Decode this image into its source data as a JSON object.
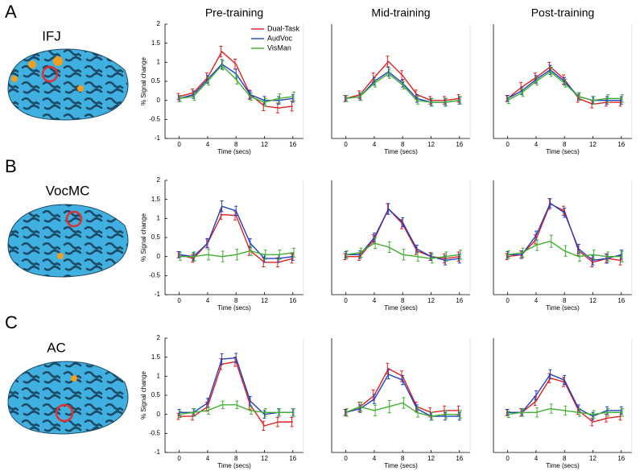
{
  "figure": {
    "row_labels": [
      "A",
      "B",
      "C"
    ],
    "regions": [
      "IFJ",
      "VocMC",
      "AC"
    ]
  },
  "chart_data": [
    {
      "type": "line",
      "title": "Pre-training",
      "xlabel": "Time (secs)",
      "ylabel": "% Signal change",
      "x": [
        0,
        2,
        4,
        6,
        8,
        10,
        12,
        14,
        16
      ],
      "xlim": [
        -2,
        17.5
      ],
      "xticks": [
        0,
        4,
        8,
        12,
        16
      ],
      "ylim": [
        -1,
        2
      ],
      "yticks": [
        -1,
        -0.5,
        0,
        0.5,
        1,
        1.5,
        2
      ],
      "legend": "upper right",
      "series": [
        {
          "name": "Dual-Task",
          "color": "#e02020",
          "values": [
            0.1,
            0.2,
            0.6,
            1.28,
            0.95,
            0.15,
            -0.15,
            -0.2,
            -0.15
          ],
          "errors": [
            0.08,
            0.1,
            0.12,
            0.14,
            0.13,
            0.12,
            0.12,
            0.13,
            0.13
          ]
        },
        {
          "name": "AudVoc",
          "color": "#2040c0",
          "values": [
            0.05,
            0.15,
            0.55,
            0.95,
            0.7,
            0.15,
            0.0,
            0.0,
            0.05
          ],
          "errors": [
            0.08,
            0.1,
            0.1,
            0.12,
            0.12,
            0.1,
            0.1,
            0.1,
            0.1
          ]
        },
        {
          "name": "VisMan",
          "color": "#40b030",
          "values": [
            0.05,
            0.1,
            0.5,
            0.92,
            0.55,
            0.1,
            -0.05,
            0.05,
            0.1
          ],
          "errors": [
            0.08,
            0.1,
            0.1,
            0.12,
            0.12,
            0.1,
            0.1,
            0.12,
            0.12
          ]
        }
      ]
    },
    {
      "type": "line",
      "title": "Mid-training",
      "xlabel": "Time (secs)",
      "x": [
        0,
        2,
        4,
        6,
        8,
        10,
        12,
        14,
        16
      ],
      "xlim": [
        -2,
        17.5
      ],
      "xticks": [
        0,
        4,
        8,
        12,
        16
      ],
      "ylim": [
        -1,
        2
      ],
      "series": [
        {
          "color": "#e02020",
          "values": [
            0.05,
            0.15,
            0.6,
            1.02,
            0.65,
            0.15,
            0.0,
            0.0,
            0.05
          ],
          "errors": [
            0.08,
            0.1,
            0.12,
            0.14,
            0.13,
            0.12,
            0.1,
            0.1,
            0.1
          ]
        },
        {
          "color": "#2040c0",
          "values": [
            0.05,
            0.1,
            0.5,
            0.75,
            0.45,
            0.05,
            -0.05,
            -0.05,
            0.0
          ],
          "errors": [
            0.08,
            0.1,
            0.1,
            0.12,
            0.1,
            0.1,
            0.1,
            0.1,
            0.1
          ]
        },
        {
          "color": "#40b030",
          "values": [
            0.05,
            0.1,
            0.45,
            0.7,
            0.4,
            0.0,
            -0.05,
            -0.05,
            0.0
          ],
          "errors": [
            0.08,
            0.1,
            0.1,
            0.12,
            0.1,
            0.1,
            0.1,
            0.1,
            0.1
          ]
        }
      ]
    },
    {
      "type": "line",
      "title": "Post-training",
      "xlabel": "Time (secs)",
      "x": [
        0,
        2,
        4,
        6,
        8,
        10,
        12,
        14,
        16
      ],
      "xlim": [
        -2,
        17.5
      ],
      "xticks": [
        0,
        4,
        8,
        12,
        16
      ],
      "ylim": [
        -1,
        2
      ],
      "series": [
        {
          "color": "#e02020",
          "values": [
            0.05,
            0.35,
            0.6,
            0.88,
            0.55,
            0.05,
            -0.1,
            -0.05,
            -0.05
          ],
          "errors": [
            0.08,
            0.12,
            0.12,
            0.12,
            0.12,
            0.1,
            0.1,
            0.1,
            0.1
          ]
        },
        {
          "color": "#2040c0",
          "values": [
            0.05,
            0.25,
            0.55,
            0.8,
            0.5,
            0.1,
            0.0,
            0.0,
            0.0
          ],
          "errors": [
            0.08,
            0.1,
            0.1,
            0.12,
            0.1,
            0.1,
            0.1,
            0.1,
            0.1
          ]
        },
        {
          "color": "#40b030",
          "values": [
            0.0,
            0.2,
            0.5,
            0.75,
            0.45,
            0.1,
            0.0,
            0.05,
            0.05
          ],
          "errors": [
            0.08,
            0.1,
            0.1,
            0.12,
            0.1,
            0.1,
            0.1,
            0.1,
            0.1
          ]
        }
      ]
    },
    {
      "type": "line",
      "xlabel": "Time (secs)",
      "ylabel": "% Signal change",
      "x": [
        0,
        2,
        4,
        6,
        8,
        10,
        12,
        14,
        16
      ],
      "xlim": [
        -2,
        17.5
      ],
      "xticks": [
        0,
        4,
        8,
        12,
        16
      ],
      "ylim": [
        -1,
        2
      ],
      "yticks": [
        -1,
        -0.5,
        0,
        0.5,
        1,
        1.5,
        2
      ],
      "series": [
        {
          "color": "#e02020",
          "values": [
            0.05,
            -0.05,
            0.35,
            1.1,
            1.08,
            0.15,
            -0.15,
            -0.15,
            -0.05
          ],
          "errors": [
            0.08,
            0.1,
            0.12,
            0.12,
            0.12,
            0.12,
            0.12,
            0.12,
            0.12
          ]
        },
        {
          "color": "#2040c0",
          "values": [
            0.05,
            0.0,
            0.35,
            1.32,
            1.2,
            0.35,
            -0.05,
            -0.05,
            0.0
          ],
          "errors": [
            0.08,
            0.1,
            0.12,
            0.14,
            0.12,
            0.12,
            0.1,
            0.1,
            0.1
          ]
        },
        {
          "color": "#40b030",
          "values": [
            0.0,
            0.0,
            0.05,
            0.0,
            0.05,
            0.15,
            0.05,
            0.05,
            0.1
          ],
          "errors": [
            0.1,
            0.12,
            0.14,
            0.14,
            0.14,
            0.12,
            0.12,
            0.12,
            0.12
          ]
        }
      ]
    },
    {
      "type": "line",
      "xlabel": "Time (secs)",
      "x": [
        0,
        2,
        4,
        6,
        8,
        10,
        12,
        14,
        16
      ],
      "xlim": [
        -2,
        17.5
      ],
      "xticks": [
        0,
        4,
        8,
        12,
        16
      ],
      "ylim": [
        -1,
        2
      ],
      "series": [
        {
          "color": "#e02020",
          "values": [
            0.0,
            0.0,
            0.45,
            1.25,
            0.85,
            0.15,
            0.0,
            -0.05,
            0.0
          ],
          "errors": [
            0.08,
            0.1,
            0.12,
            0.14,
            0.12,
            0.1,
            0.1,
            0.12,
            0.12
          ]
        },
        {
          "color": "#2040c0",
          "values": [
            0.05,
            0.05,
            0.5,
            1.25,
            0.9,
            0.2,
            0.0,
            -0.1,
            -0.05
          ],
          "errors": [
            0.08,
            0.1,
            0.12,
            0.14,
            0.12,
            0.1,
            0.1,
            0.12,
            0.12
          ]
        },
        {
          "color": "#40b030",
          "values": [
            0.05,
            0.1,
            0.35,
            0.25,
            0.05,
            0.0,
            -0.05,
            0.0,
            0.05
          ],
          "errors": [
            0.1,
            0.12,
            0.14,
            0.14,
            0.14,
            0.12,
            0.12,
            0.12,
            0.12
          ]
        }
      ]
    },
    {
      "type": "line",
      "xlabel": "Time (secs)",
      "x": [
        0,
        2,
        4,
        6,
        8,
        10,
        12,
        14,
        16
      ],
      "xlim": [
        -2,
        17.5
      ],
      "xticks": [
        0,
        4,
        8,
        12,
        16
      ],
      "ylim": [
        -1,
        2
      ],
      "series": [
        {
          "color": "#e02020",
          "values": [
            0.0,
            0.05,
            0.45,
            1.38,
            1.2,
            0.15,
            -0.15,
            -0.05,
            -0.1
          ],
          "errors": [
            0.08,
            0.1,
            0.12,
            0.14,
            0.12,
            0.12,
            0.12,
            0.12,
            0.12
          ]
        },
        {
          "color": "#2040c0",
          "values": [
            0.05,
            0.05,
            0.55,
            1.4,
            1.15,
            0.2,
            -0.1,
            -0.05,
            0.05
          ],
          "errors": [
            0.08,
            0.1,
            0.12,
            0.12,
            0.12,
            0.12,
            0.12,
            0.12,
            0.12
          ]
        },
        {
          "color": "#40b030",
          "values": [
            0.05,
            0.1,
            0.3,
            0.4,
            0.15,
            0.0,
            0.05,
            0.0,
            0.0
          ],
          "errors": [
            0.1,
            0.12,
            0.14,
            0.16,
            0.14,
            0.12,
            0.12,
            0.12,
            0.14
          ]
        }
      ]
    },
    {
      "type": "line",
      "xlabel": "Time (secs)",
      "ylabel": "% Signal change",
      "x": [
        0,
        2,
        4,
        6,
        8,
        10,
        12,
        14,
        16
      ],
      "xlim": [
        -2,
        17.5
      ],
      "xticks": [
        0,
        4,
        8,
        12,
        16
      ],
      "ylim": [
        -1,
        2
      ],
      "yticks": [
        -1,
        -0.5,
        0,
        0.5,
        1,
        1.5,
        2
      ],
      "series": [
        {
          "color": "#e02020",
          "values": [
            -0.05,
            -0.05,
            0.2,
            1.32,
            1.38,
            0.25,
            -0.3,
            -0.2,
            -0.2
          ],
          "errors": [
            0.08,
            0.1,
            0.12,
            0.14,
            0.12,
            0.12,
            0.12,
            0.12,
            0.12
          ]
        },
        {
          "color": "#2040c0",
          "values": [
            0.05,
            0.05,
            0.3,
            1.45,
            1.48,
            0.35,
            0.0,
            0.05,
            0.05
          ],
          "errors": [
            0.08,
            0.1,
            0.12,
            0.14,
            0.12,
            0.12,
            0.1,
            0.1,
            0.1
          ]
        },
        {
          "color": "#40b030",
          "values": [
            0.0,
            0.05,
            0.1,
            0.25,
            0.25,
            0.1,
            0.05,
            0.05,
            0.05
          ],
          "errors": [
            0.08,
            0.1,
            0.1,
            0.1,
            0.1,
            0.1,
            0.1,
            0.1,
            0.1
          ]
        }
      ]
    },
    {
      "type": "line",
      "xlabel": "Time (secs)",
      "x": [
        0,
        2,
        4,
        6,
        8,
        10,
        12,
        14,
        16
      ],
      "xlim": [
        -2,
        17.5
      ],
      "xticks": [
        0,
        4,
        8,
        12,
        16
      ],
      "ylim": [
        -1,
        2
      ],
      "series": [
        {
          "color": "#e02020",
          "values": [
            0.05,
            0.2,
            0.5,
            1.2,
            1.0,
            0.2,
            0.05,
            0.1,
            0.1
          ],
          "errors": [
            0.08,
            0.12,
            0.14,
            0.14,
            0.14,
            0.12,
            0.12,
            0.12,
            0.12
          ]
        },
        {
          "color": "#2040c0",
          "values": [
            0.05,
            0.15,
            0.4,
            1.05,
            0.9,
            0.15,
            -0.05,
            -0.05,
            -0.05
          ],
          "errors": [
            0.08,
            0.1,
            0.12,
            0.12,
            0.12,
            0.1,
            0.1,
            0.1,
            0.1
          ]
        },
        {
          "color": "#40b030",
          "values": [
            0.05,
            0.2,
            0.1,
            0.2,
            0.3,
            0.05,
            -0.05,
            0.0,
            0.0
          ],
          "errors": [
            0.1,
            0.12,
            0.14,
            0.16,
            0.14,
            0.12,
            0.1,
            0.1,
            0.1
          ]
        }
      ]
    },
    {
      "type": "line",
      "xlabel": "Time (secs)",
      "x": [
        0,
        2,
        4,
        6,
        8,
        10,
        12,
        14,
        16
      ],
      "xlim": [
        -2,
        17.5
      ],
      "xticks": [
        0,
        4,
        8,
        12,
        16
      ],
      "ylim": [
        -1,
        2
      ],
      "series": [
        {
          "color": "#e02020",
          "values": [
            0.05,
            0.05,
            0.35,
            0.95,
            0.85,
            0.1,
            -0.2,
            -0.1,
            -0.05
          ],
          "errors": [
            0.08,
            0.1,
            0.12,
            0.12,
            0.12,
            0.1,
            0.1,
            0.1,
            0.1
          ]
        },
        {
          "color": "#2040c0",
          "values": [
            0.05,
            0.05,
            0.5,
            1.05,
            0.9,
            0.15,
            -0.05,
            0.1,
            0.1
          ],
          "errors": [
            0.08,
            0.1,
            0.12,
            0.12,
            0.12,
            0.1,
            0.1,
            0.1,
            0.1
          ]
        },
        {
          "color": "#40b030",
          "values": [
            0.0,
            0.05,
            0.05,
            0.15,
            0.1,
            0.05,
            0.0,
            0.05,
            0.05
          ],
          "errors": [
            0.08,
            0.1,
            0.12,
            0.12,
            0.12,
            0.1,
            0.1,
            0.1,
            0.1
          ]
        }
      ]
    }
  ]
}
